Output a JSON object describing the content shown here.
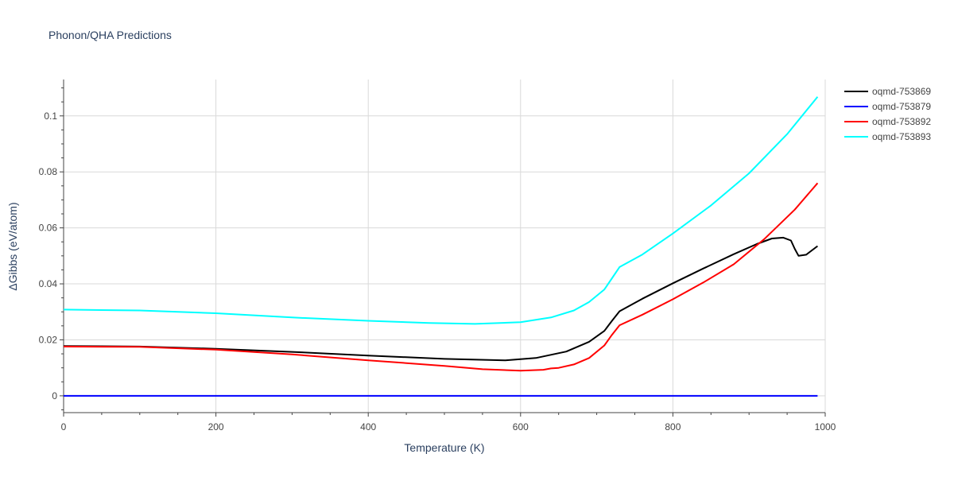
{
  "chart_data": {
    "type": "line",
    "title": "Phonon/QHA Predictions",
    "xlabel": "Temperature (K)",
    "ylabel": "ΔGibbs (eV/atom)",
    "xlim": [
      0,
      1000
    ],
    "ylim": [
      -0.006,
      0.113
    ],
    "xticks": [
      0,
      200,
      400,
      600,
      800,
      1000
    ],
    "yticks": [
      0,
      0.02,
      0.04,
      0.06,
      0.08,
      0.1
    ],
    "ytick_labels": [
      "0",
      "0.02",
      "0.04",
      "0.06",
      "0.08",
      "0.1"
    ],
    "grid": true,
    "legend_position": "top-right",
    "series": [
      {
        "name": "oqmd-753869",
        "color": "#000000",
        "x": [
          0,
          100,
          200,
          300,
          400,
          500,
          580,
          620,
          660,
          690,
          710,
          720,
          730,
          760,
          800,
          840,
          880,
          910,
          930,
          945,
          955,
          960,
          965,
          975,
          990
        ],
        "y": [
          0.0178,
          0.0176,
          0.0168,
          0.0157,
          0.0144,
          0.0132,
          0.0127,
          0.0135,
          0.0158,
          0.0193,
          0.0232,
          0.0268,
          0.0302,
          0.0347,
          0.0402,
          0.0455,
          0.0506,
          0.0542,
          0.0562,
          0.0565,
          0.0555,
          0.0525,
          0.05,
          0.0504,
          0.0535
        ]
      },
      {
        "name": "oqmd-753879",
        "color": "#0000ff",
        "x": [
          0,
          990
        ],
        "y": [
          0.0,
          0.0
        ]
      },
      {
        "name": "oqmd-753892",
        "color": "#ff0000",
        "x": [
          0,
          100,
          200,
          300,
          400,
          500,
          550,
          600,
          630,
          640,
          650,
          670,
          690,
          710,
          720,
          730,
          760,
          800,
          840,
          880,
          920,
          960,
          990
        ],
        "y": [
          0.0176,
          0.0175,
          0.0165,
          0.0148,
          0.0127,
          0.0107,
          0.0095,
          0.009,
          0.0093,
          0.0098,
          0.01,
          0.0112,
          0.0135,
          0.018,
          0.0218,
          0.0252,
          0.029,
          0.0345,
          0.0405,
          0.047,
          0.056,
          0.0665,
          0.076
        ]
      },
      {
        "name": "oqmd-753893",
        "color": "#00ffff",
        "x": [
          0,
          100,
          200,
          300,
          400,
          480,
          540,
          600,
          640,
          670,
          690,
          710,
          720,
          730,
          760,
          800,
          850,
          900,
          950,
          990
        ],
        "y": [
          0.0308,
          0.0305,
          0.0295,
          0.028,
          0.0268,
          0.026,
          0.0257,
          0.0263,
          0.028,
          0.0305,
          0.0335,
          0.038,
          0.042,
          0.046,
          0.0505,
          0.058,
          0.068,
          0.0795,
          0.0935,
          0.1068
        ]
      }
    ]
  }
}
